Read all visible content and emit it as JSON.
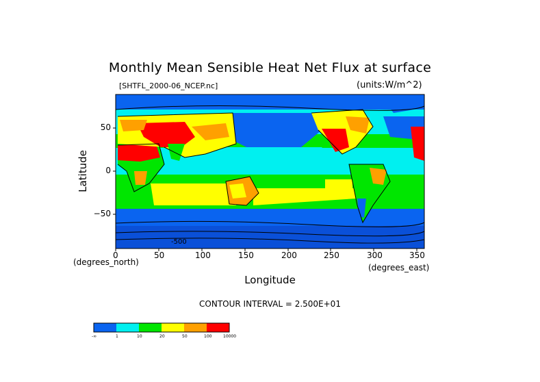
{
  "title": "Monthly Mean Sensible Heat Net Flux at surface",
  "dataset_label": "[SHTFL_2000-06_NCEP.nc]",
  "units_label": "(units:W/m^2)",
  "axes": {
    "ylabel": "Latitude",
    "xlabel": "Longitude",
    "x_unit_left": "(degrees_north)",
    "x_unit_right": "(degrees_east)",
    "x_ticks": [
      "0",
      "50",
      "100",
      "150",
      "200",
      "250",
      "300",
      "350"
    ],
    "y_ticks": [
      "50",
      "0",
      "−50"
    ]
  },
  "contour_text": "CONTOUR INTERVAL = 2.500E+01",
  "colorbar": {
    "colors": [
      "#0a64f0",
      "#00f0f0",
      "#00e600",
      "#ffff00",
      "#ffa000",
      "#ff0000"
    ],
    "labels": [
      "-∞",
      "1",
      "10",
      "20",
      "50",
      "100",
      "10000"
    ]
  },
  "map_annotation": "-500"
}
